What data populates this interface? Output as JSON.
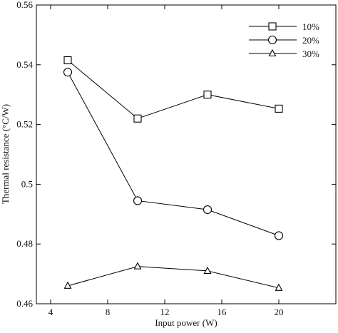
{
  "chart_data": {
    "type": "line",
    "title": "",
    "xlabel": "Input power (W)",
    "ylabel": "Thermal resistance (°C/W)",
    "xlim": [
      3,
      24
    ],
    "ylim": [
      0.46,
      0.56
    ],
    "xticks": [
      4,
      8,
      12,
      16,
      20
    ],
    "yticks": [
      0.46,
      0.48,
      0.5,
      0.52,
      0.54,
      0.56
    ],
    "xtick_labels": [
      "4",
      "8",
      "12",
      "16",
      "20"
    ],
    "ytick_labels": [
      "0.46",
      "0.48",
      "0.5",
      "0.52",
      "0.54",
      "0.56"
    ],
    "grid": false,
    "legend_position": "top-right",
    "series": [
      {
        "name": "10%",
        "marker": "square",
        "x": [
          5.2,
          10.1,
          15,
          20
        ],
        "y": [
          0.5415,
          0.522,
          0.53,
          0.5253
        ]
      },
      {
        "name": "20%",
        "marker": "circle",
        "x": [
          5.2,
          10.1,
          15,
          20
        ],
        "y": [
          0.5375,
          0.4945,
          0.4915,
          0.4828
        ]
      },
      {
        "name": "30%",
        "marker": "triangle",
        "x": [
          5.2,
          10.1,
          15,
          20
        ],
        "y": [
          0.466,
          0.4725,
          0.471,
          0.4653
        ]
      }
    ]
  }
}
